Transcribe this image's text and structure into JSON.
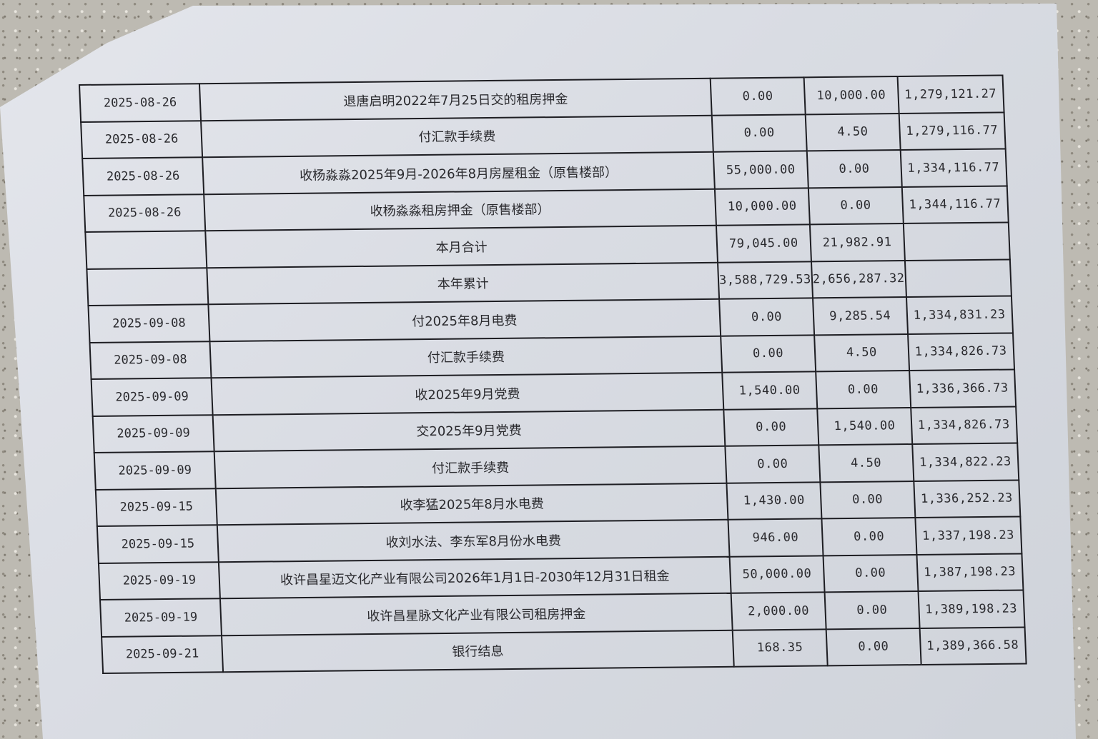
{
  "ledger": {
    "rows": [
      {
        "date": "2025-08-26",
        "desc": "退唐启明2022年7月25日交的租房押金",
        "debit": "0.00",
        "credit": "10,000.00",
        "balance": "1,279,121.27"
      },
      {
        "date": "2025-08-26",
        "desc": "付汇款手续费",
        "debit": "0.00",
        "credit": "4.50",
        "balance": "1,279,116.77"
      },
      {
        "date": "2025-08-26",
        "desc": "收杨淼淼2025年9月-2026年8月房屋租金（原售楼部）",
        "debit": "55,000.00",
        "credit": "0.00",
        "balance": "1,334,116.77"
      },
      {
        "date": "2025-08-26",
        "desc": "收杨淼淼租房押金（原售楼部）",
        "debit": "10,000.00",
        "credit": "0.00",
        "balance": "1,344,116.77"
      },
      {
        "date": "",
        "desc": "本月合计",
        "debit": "79,045.00",
        "credit": "21,982.91",
        "balance": ""
      },
      {
        "date": "",
        "desc": "本年累计",
        "debit": "3,588,729.53",
        "credit": "2,656,287.32",
        "balance": ""
      },
      {
        "date": "2025-09-08",
        "desc": "付2025年8月电费",
        "debit": "0.00",
        "credit": "9,285.54",
        "balance": "1,334,831.23"
      },
      {
        "date": "2025-09-08",
        "desc": "付汇款手续费",
        "debit": "0.00",
        "credit": "4.50",
        "balance": "1,334,826.73"
      },
      {
        "date": "2025-09-09",
        "desc": "收2025年9月党费",
        "debit": "1,540.00",
        "credit": "0.00",
        "balance": "1,336,366.73"
      },
      {
        "date": "2025-09-09",
        "desc": "交2025年9月党费",
        "debit": "0.00",
        "credit": "1,540.00",
        "balance": "1,334,826.73"
      },
      {
        "date": "2025-09-09",
        "desc": "付汇款手续费",
        "debit": "0.00",
        "credit": "4.50",
        "balance": "1,334,822.23"
      },
      {
        "date": "2025-09-15",
        "desc": "收李猛2025年8月水电费",
        "debit": "1,430.00",
        "credit": "0.00",
        "balance": "1,336,252.23"
      },
      {
        "date": "2025-09-15",
        "desc": "收刘水法、李东军8月份水电费",
        "debit": "946.00",
        "credit": "0.00",
        "balance": "1,337,198.23"
      },
      {
        "date": "2025-09-19",
        "desc": "收许昌星迈文化产业有限公司2026年1月1日-2030年12月31日租金",
        "debit": "50,000.00",
        "credit": "0.00",
        "balance": "1,387,198.23"
      },
      {
        "date": "2025-09-19",
        "desc": "收许昌星脉文化产业有限公司租房押金",
        "debit": "2,000.00",
        "credit": "0.00",
        "balance": "1,389,198.23"
      },
      {
        "date": "2025-09-21",
        "desc": "银行结息",
        "debit": "168.35",
        "credit": "0.00",
        "balance": "1,389,366.58"
      }
    ]
  }
}
